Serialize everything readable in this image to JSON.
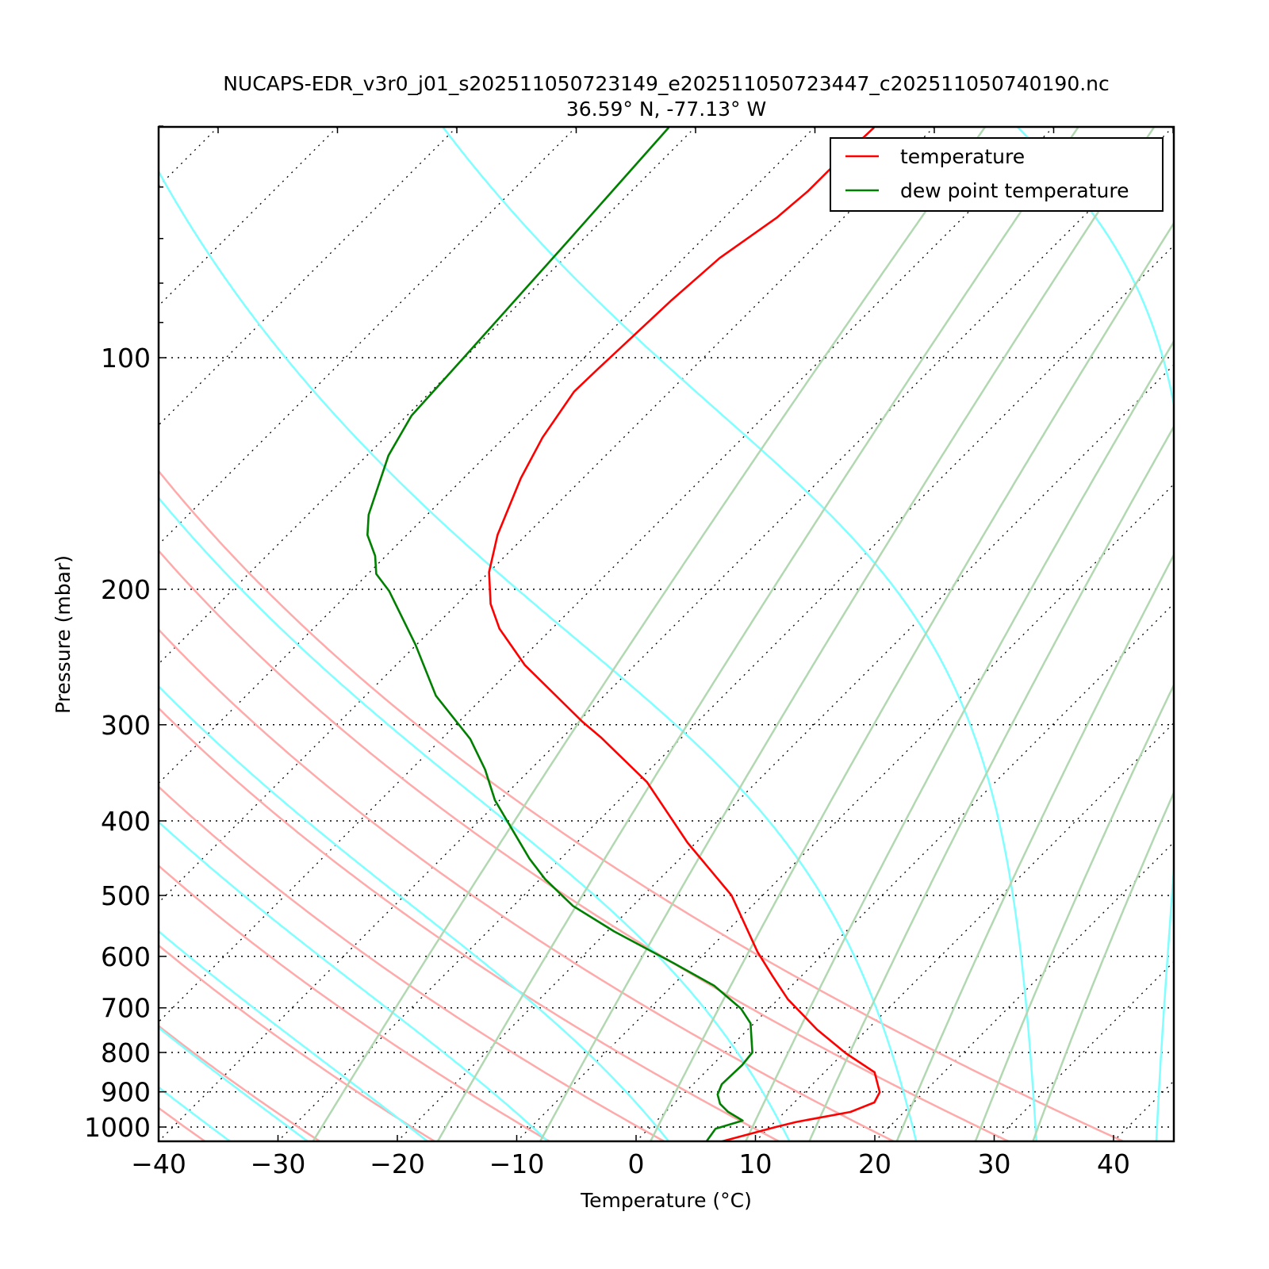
{
  "chart_data": {
    "type": "line",
    "subtype": "skew-t log-p",
    "title": "NUCAPS-EDR_v3r0_j01_s202511050723149_e202511050723447_c202511050740190.nc",
    "subtitle": "36.59° N, -77.13° W",
    "xlabel": "Temperature (°C)",
    "ylabel": "Pressure (mbar)",
    "xlim": [
      -40,
      45
    ],
    "ylim": [
      1050,
      50
    ],
    "yscale": "log",
    "skew_degrees": 45,
    "x_ticks": [
      -40,
      -30,
      -20,
      -10,
      0,
      10,
      20,
      30,
      40
    ],
    "x_tick_labels": [
      "−40",
      "−30",
      "−20",
      "−10",
      "0",
      "10",
      "20",
      "30",
      "40"
    ],
    "y_ticks": [
      100,
      200,
      300,
      400,
      500,
      600,
      700,
      800,
      900,
      1000
    ],
    "y_tick_labels": [
      "100",
      "200",
      "300",
      "400",
      "500",
      "600",
      "700",
      "800",
      "900",
      "1000"
    ],
    "y_minor_ticks": [
      50,
      60,
      70,
      80,
      90
    ],
    "legend": {
      "placement": "top-right",
      "entries": [
        "temperature",
        "dew point temperature"
      ]
    },
    "series": [
      {
        "name": "temperature",
        "color": "#ff0000",
        "pressure": [
          1044,
          1000,
          985,
          956,
          929,
          901,
          849,
          802,
          747,
          682,
          638,
          592,
          500,
          427,
          356,
          312,
          297,
          251,
          225,
          209,
          190,
          170,
          143.5,
          127,
          110.7,
          103.4,
          84.2,
          74.2,
          65.8,
          60.7,
          56.5,
          50.2
        ],
        "values": [
          7.2,
          10.5,
          11.8,
          15.5,
          16.7,
          16.3,
          14.2,
          10.2,
          5.8,
          0.8,
          -2.3,
          -5.7,
          -12.6,
          -20.7,
          -29.2,
          -36.7,
          -39.7,
          -49.2,
          -54.4,
          -57.2,
          -60.0,
          -62.4,
          -65.2,
          -66.8,
          -68.0,
          -67.9,
          -67.5,
          -67.0,
          -65.6,
          -65.2,
          -65.2,
          -65.0
        ]
      },
      {
        "name": "dew point temperature",
        "color": "#008000",
        "pressure": [
          1044,
          1005,
          981,
          955,
          933,
          907,
          880,
          831,
          800,
          733,
          702,
          655,
          613,
          557,
          516,
          476,
          448,
          376,
          343,
          313,
          275,
          236,
          201,
          191,
          181,
          170,
          160,
          134,
          119,
          99.8,
          71,
          50.2
        ],
        "values": [
          5.9,
          5.6,
          7.2,
          5.2,
          3.9,
          2.9,
          2.4,
          2.5,
          2.3,
          -0.3,
          -2.3,
          -6.5,
          -11.7,
          -19.4,
          -25.0,
          -29.6,
          -32.6,
          -40.4,
          -43.8,
          -47.6,
          -54.1,
          -60.1,
          -66.8,
          -69.3,
          -70.9,
          -73.3,
          -74.9,
          -78.2,
          -79.6,
          -80.1,
          -81.1,
          -82.2
        ]
      }
    ],
    "background_lines": {
      "isotherms_C": {
        "style": "dotted",
        "color": "#000000",
        "start": -160,
        "end": 40,
        "step": 10
      },
      "dry_adiabats_theta_C": {
        "color": "#ffaaaa",
        "values": [
          -115,
          -105.5,
          -96,
          -86.5,
          -77,
          -67.5,
          -58,
          -48.5,
          -39,
          -29.5,
          -20,
          -10.5,
          -1,
          8.5,
          18,
          27.5,
          37
        ]
      },
      "moist_adiabats_T_at_1050_C": {
        "color": "#7fffff",
        "values": [
          -60,
          -53,
          -46.5,
          -40,
          -33,
          -26.5,
          -16.5,
          -6.5,
          3.5,
          13.5,
          24,
          34,
          44
        ]
      },
      "mixing_ratio_g_per_kg": {
        "color": "#b2d8b2",
        "values": [
          0.4,
          1,
          2,
          4,
          7,
          10,
          16,
          24,
          32
        ]
      },
      "isobars_mbar": [
        100,
        200,
        300,
        400,
        500,
        600,
        700,
        800,
        900,
        1000
      ]
    }
  }
}
